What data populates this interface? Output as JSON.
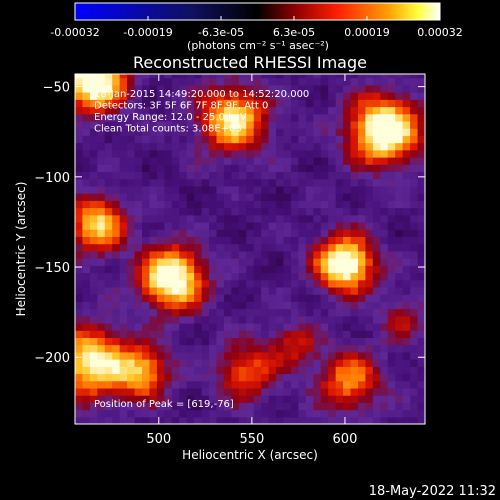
{
  "colorbar": {
    "tick_labels": [
      "-0.00032",
      "-0.00019",
      "-6.3e-05",
      "6.3e-05",
      "0.00019",
      "0.00032"
    ],
    "unit_label": "(photons cm⁻² s⁻¹ asec⁻²)",
    "range": [
      -0.00032,
      0.00032
    ],
    "colormap": "blue-black-red-yellow-white"
  },
  "chart_data": {
    "type": "heatmap",
    "title": "Reconstructed RHESSI Image",
    "xlabel": "Heliocentric X (arcsec)",
    "ylabel": "Heliocentric Y (arcsec)",
    "xlim": [
      455,
      643
    ],
    "ylim": [
      -237,
      -43
    ],
    "x_ticks": [
      500,
      550,
      600
    ],
    "x_tick_labels": [
      "500",
      "550",
      "600"
    ],
    "y_ticks": [
      -50,
      -100,
      -150,
      -200
    ],
    "y_tick_labels": [
      "−50",
      "−100",
      "−150",
      "−200"
    ],
    "annotations": [
      "18-Jan-2015 14:49:20.000 to 14:52:20.000",
      "Detectors: 3F 5F 6F 7F 8F 9F, Att 0",
      "Energy Range: 12.0 - 25.0 keV",
      "Clean     Total counts: 3.08E+03"
    ],
    "peak_label": "Position of Peak = [619,-76]",
    "sources": [
      {
        "x": 463,
        "y": -48,
        "amp": 1.0,
        "w": 12
      },
      {
        "x": 538,
        "y": -70,
        "amp": 0.75,
        "w": 13
      },
      {
        "x": 619,
        "y": -76,
        "amp": 1.0,
        "w": 13
      },
      {
        "x": 505,
        "y": -158,
        "amp": 0.95,
        "w": 12
      },
      {
        "x": 598,
        "y": -150,
        "amp": 0.95,
        "w": 11
      },
      {
        "x": 465,
        "y": -128,
        "amp": 0.7,
        "w": 11
      },
      {
        "x": 462,
        "y": -205,
        "amp": 0.8,
        "w": 14
      },
      {
        "x": 490,
        "y": -210,
        "amp": 0.6,
        "w": 10
      },
      {
        "x": 545,
        "y": -210,
        "amp": 0.5,
        "w": 11
      },
      {
        "x": 600,
        "y": -215,
        "amp": 0.55,
        "w": 12
      },
      {
        "x": 570,
        "y": -195,
        "amp": 0.35,
        "w": 9
      },
      {
        "x": 630,
        "y": -180,
        "amp": 0.3,
        "w": 9
      }
    ]
  },
  "footer": {
    "timestamp": "18-May-2022 11:32"
  }
}
